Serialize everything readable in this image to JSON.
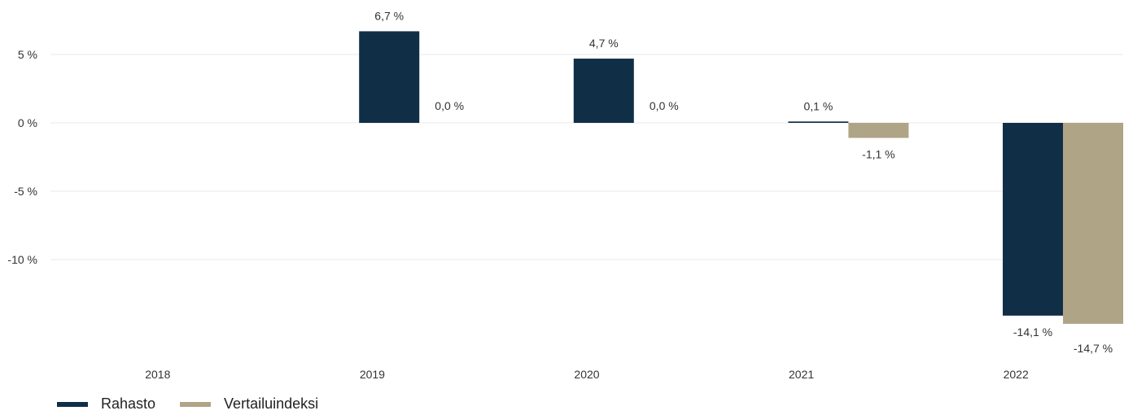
{
  "chart_data": {
    "type": "bar",
    "categories": [
      "2018",
      "2019",
      "2020",
      "2021",
      "2022"
    ],
    "series": [
      {
        "name": "Rahasto",
        "color": "#112e47",
        "values": [
          null,
          6.7,
          4.7,
          0.1,
          -14.1
        ],
        "labels": [
          "",
          "6,7 %",
          "4,7 %",
          "0,1 %",
          "-14,1 %"
        ]
      },
      {
        "name": "Vertailuindeksi",
        "color": "#b0a487",
        "values": [
          null,
          0.0,
          0.0,
          -1.1,
          -14.7
        ],
        "labels": [
          "",
          "0,0 %",
          "0,0 %",
          "-1,1 %",
          "-14,7 %"
        ]
      }
    ],
    "y_ticks": [
      {
        "value": 5,
        "label": "5 %"
      },
      {
        "value": 0,
        "label": "0 %"
      },
      {
        "value": -5,
        "label": "-5 %"
      },
      {
        "value": -10,
        "label": "-10 %"
      }
    ],
    "ylim": [
      -15,
      7
    ],
    "grid": true,
    "legend_position": "bottom-left"
  }
}
